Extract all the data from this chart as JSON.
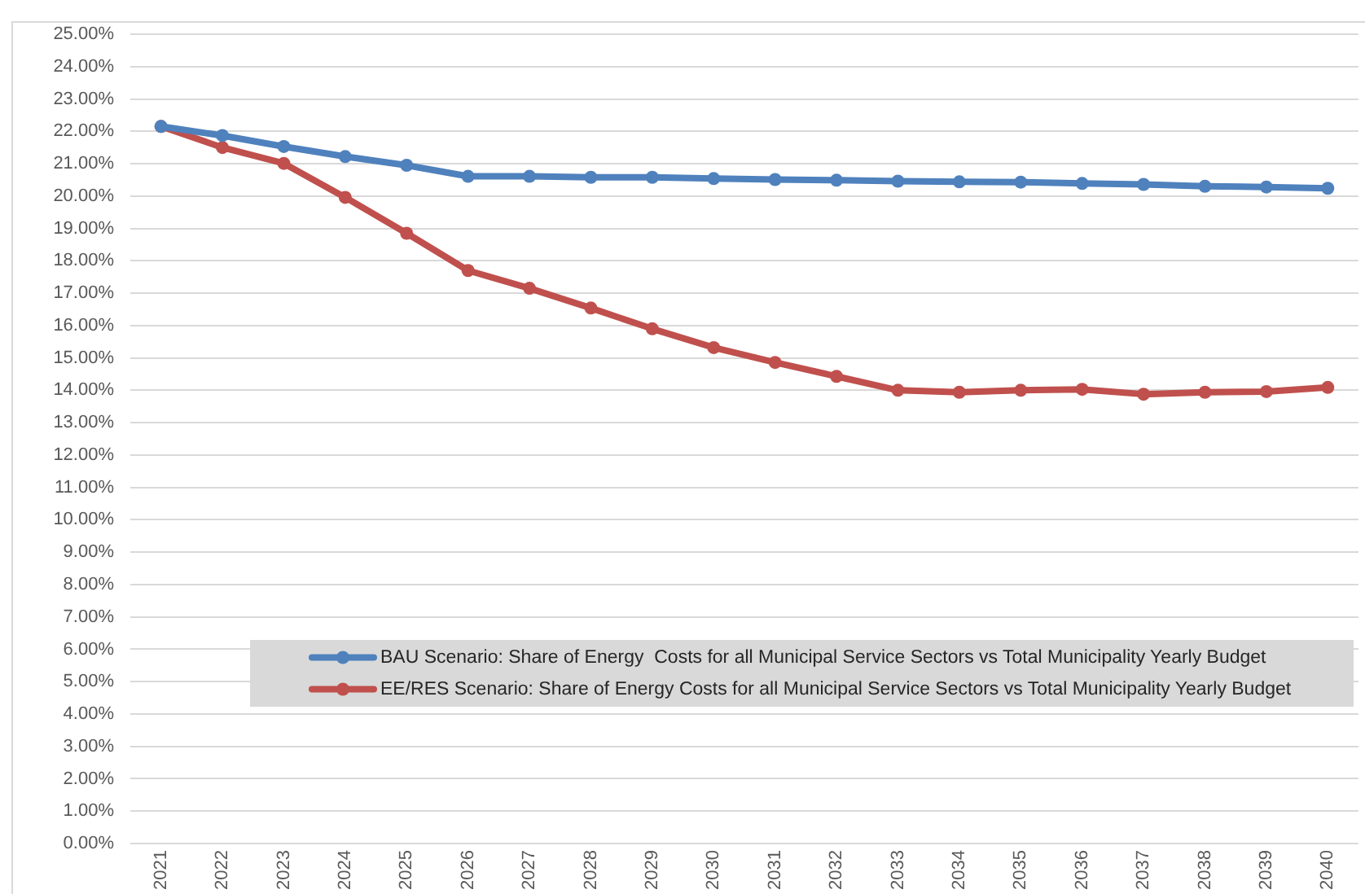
{
  "chart_data": {
    "type": "line",
    "categories": [
      "2021",
      "2022",
      "2023",
      "2024",
      "2025",
      "2026",
      "2027",
      "2028",
      "2029",
      "2030",
      "2031",
      "2032",
      "2033",
      "2034",
      "2035",
      "2036",
      "2037",
      "2038",
      "2039",
      "2040"
    ],
    "series": [
      {
        "name": "BAU Scenario: Share of Energy  Costs for all Municipal Service Sectors vs Total Municipality Yearly Budget",
        "color": "#4f81bd",
        "values": [
          22.15,
          21.87,
          21.53,
          21.22,
          20.95,
          20.61,
          20.61,
          20.58,
          20.58,
          20.54,
          20.51,
          20.49,
          20.46,
          20.44,
          20.43,
          20.39,
          20.36,
          20.3,
          20.28,
          20.24
        ]
      },
      {
        "name": "EE/RES Scenario: Share of Energy Costs for all Municipal Service Sectors vs Total Municipality Yearly Budget",
        "color": "#c0504d",
        "values": [
          22.15,
          21.5,
          21.01,
          19.96,
          18.85,
          17.7,
          17.15,
          16.54,
          15.9,
          15.32,
          14.86,
          14.43,
          14.0,
          13.94,
          14.0,
          14.03,
          13.88,
          13.94,
          13.96,
          14.09
        ]
      }
    ],
    "ylim": [
      0,
      25
    ],
    "yticks": [
      {
        "value": 0,
        "label": "0.00%"
      },
      {
        "value": 1,
        "label": "1.00%"
      },
      {
        "value": 2,
        "label": "2.00%"
      },
      {
        "value": 3,
        "label": "3.00%"
      },
      {
        "value": 4,
        "label": "4.00%"
      },
      {
        "value": 5,
        "label": "5.00%"
      },
      {
        "value": 6,
        "label": "6.00%"
      },
      {
        "value": 7,
        "label": "7.00%"
      },
      {
        "value": 8,
        "label": "8.00%"
      },
      {
        "value": 9,
        "label": "9.00%"
      },
      {
        "value": 10,
        "label": "10.00%"
      },
      {
        "value": 11,
        "label": "11.00%"
      },
      {
        "value": 12,
        "label": "12.00%"
      },
      {
        "value": 13,
        "label": "13.00%"
      },
      {
        "value": 14,
        "label": "14.00%"
      },
      {
        "value": 15,
        "label": "15.00%"
      },
      {
        "value": 16,
        "label": "16.00%"
      },
      {
        "value": 17,
        "label": "17.00%"
      },
      {
        "value": 18,
        "label": "18.00%"
      },
      {
        "value": 19,
        "label": "19.00%"
      },
      {
        "value": 20,
        "label": "20.00%"
      },
      {
        "value": 21,
        "label": "21.00%"
      },
      {
        "value": 22,
        "label": "22.00%"
      },
      {
        "value": 23,
        "label": "23.00%"
      },
      {
        "value": 24,
        "label": "24.00%"
      },
      {
        "value": 25,
        "label": "25.00%"
      }
    ],
    "grid": "y",
    "legend": "bottom right",
    "marker": "circle",
    "line_style": "solid"
  }
}
